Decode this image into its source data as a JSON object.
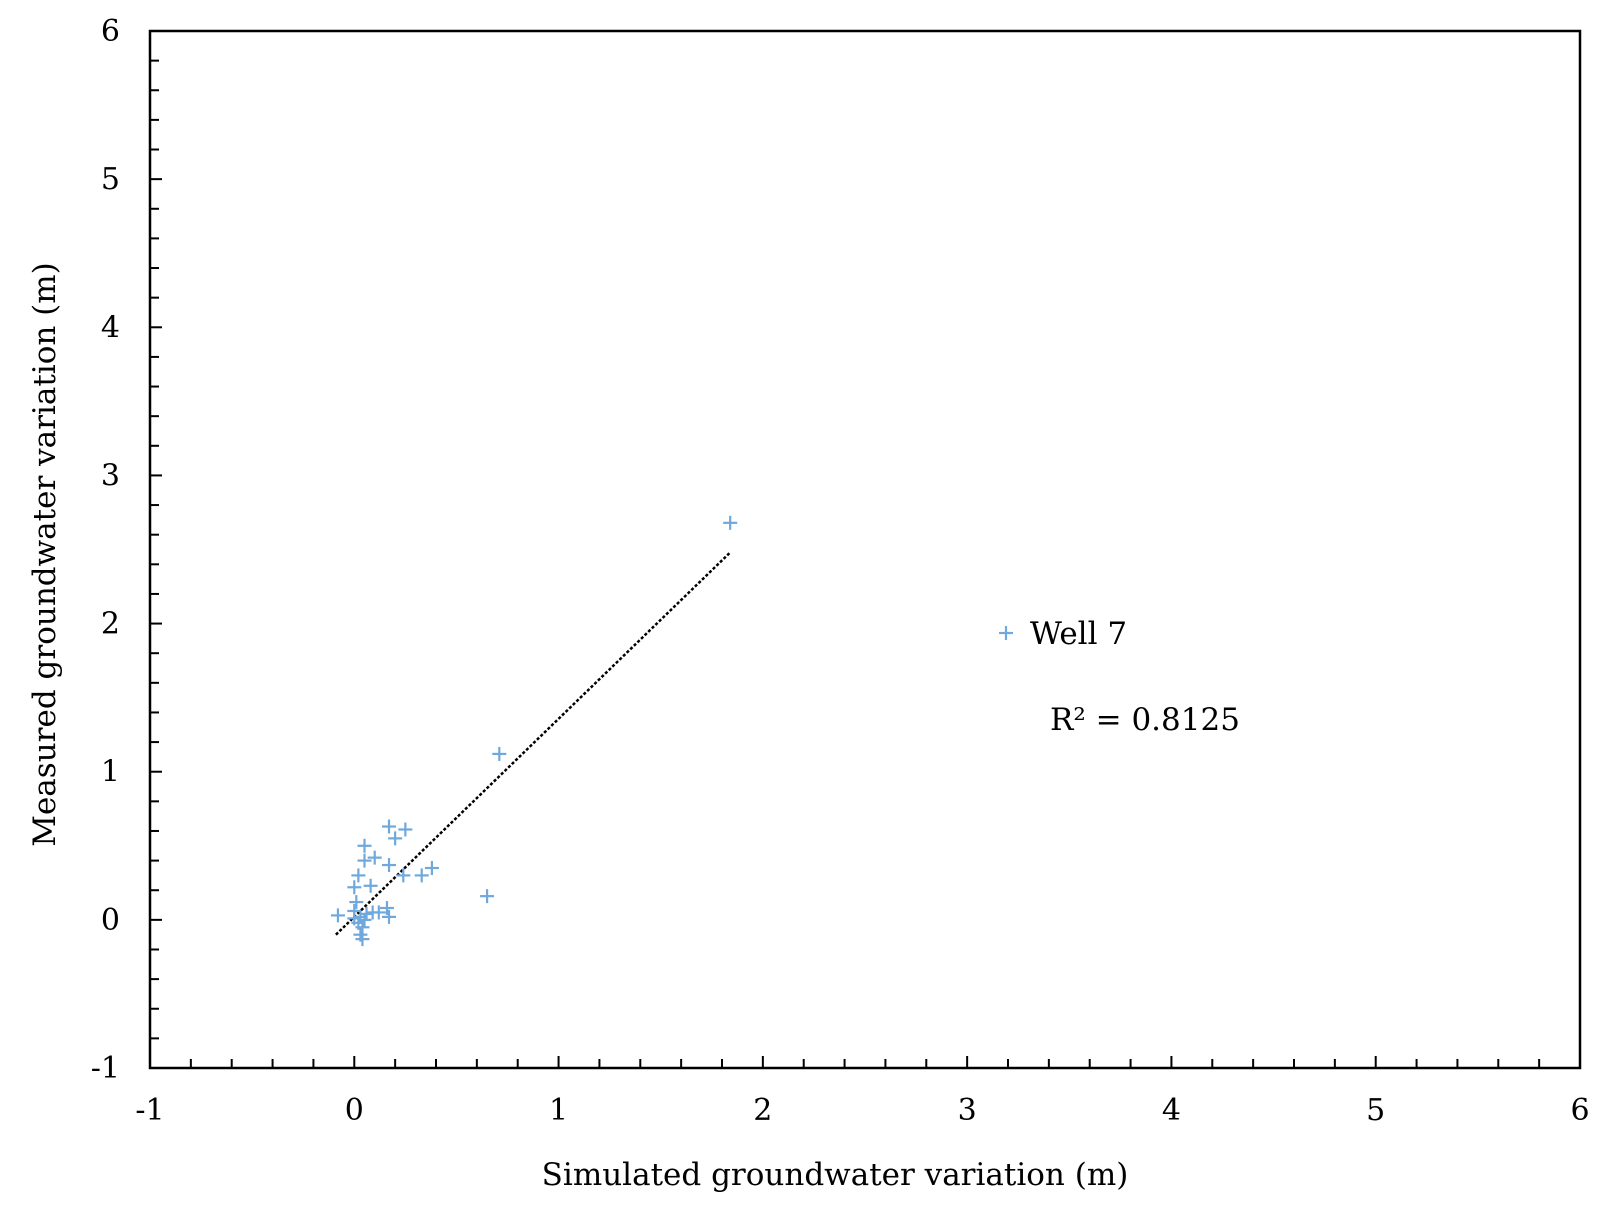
{
  "chart_data": {
    "type": "scatter",
    "xlabel": "Simulated groundwater variation (m)",
    "ylabel": "Measured groundwater variation (m)",
    "xlim": [
      -1,
      6
    ],
    "ylim": [
      -1,
      6
    ],
    "x_ticks": [
      "-1",
      "0",
      "1",
      "2",
      "3",
      "4",
      "5",
      "6"
    ],
    "y_ticks": [
      "-1",
      "0",
      "1",
      "2",
      "3",
      "4",
      "5",
      "6"
    ],
    "grid": false,
    "legend_position": "right-middle",
    "marker_color": "#6fa8dc",
    "trendline_color": "#000000",
    "series": [
      {
        "name": "Well 7",
        "marker": "plus",
        "points": [
          [
            1.84,
            2.68
          ],
          [
            0.71,
            1.12
          ],
          [
            0.17,
            0.63
          ],
          [
            0.25,
            0.61
          ],
          [
            0.2,
            0.55
          ],
          [
            0.05,
            0.5
          ],
          [
            0.1,
            0.42
          ],
          [
            0.05,
            0.4
          ],
          [
            0.17,
            0.37
          ],
          [
            0.38,
            0.35
          ],
          [
            0.33,
            0.3
          ],
          [
            0.24,
            0.3
          ],
          [
            0.02,
            0.3
          ],
          [
            0.08,
            0.23
          ],
          [
            0.0,
            0.22
          ],
          [
            0.65,
            0.16
          ],
          [
            0.01,
            0.12
          ],
          [
            0.16,
            0.08
          ],
          [
            0.0,
            0.06
          ],
          [
            0.12,
            0.05
          ],
          [
            0.09,
            0.05
          ],
          [
            0.06,
            0.04
          ],
          [
            -0.08,
            0.03
          ],
          [
            0.17,
            0.02
          ],
          [
            0.03,
            0.02
          ],
          [
            0.0,
            0.01
          ],
          [
            0.05,
            0.0
          ],
          [
            0.02,
            -0.02
          ],
          [
            0.04,
            -0.05
          ],
          [
            0.03,
            -0.1
          ],
          [
            0.04,
            -0.13
          ]
        ]
      }
    ],
    "trendline": {
      "x_start": -0.09,
      "x_end": 1.84,
      "y_start": -0.1,
      "y_end": 2.48
    },
    "annotations": [
      {
        "text": "R² = 0.8125"
      }
    ]
  }
}
